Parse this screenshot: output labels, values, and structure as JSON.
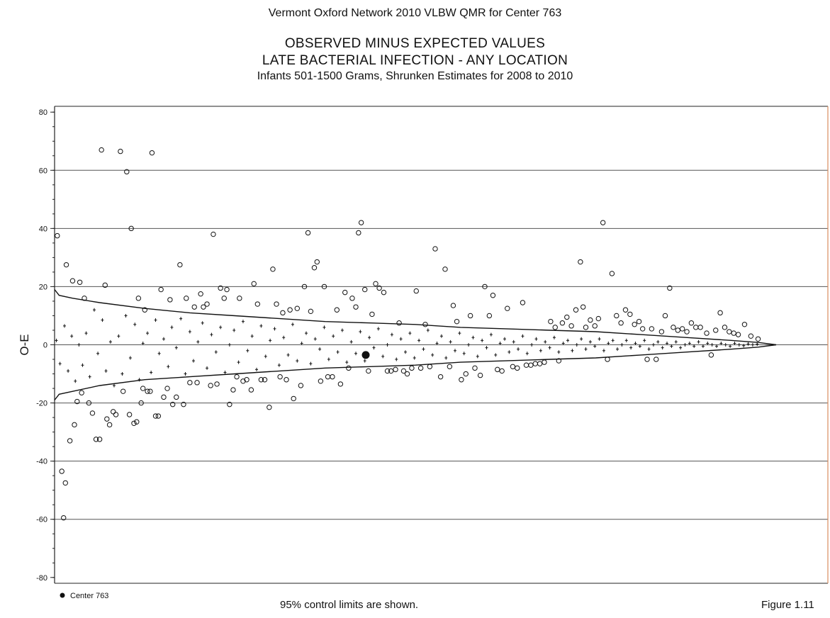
{
  "header": {
    "line1": "Vermont Oxford Network 2010 VLBW QMR for Center 763",
    "line2": "OBSERVED MINUS EXPECTED VALUES",
    "line3": "LATE BACTERIAL INFECTION - ANY LOCATION",
    "line4": "Infants 501-1500 Grams, Shrunken Estimates for 2008 to 2010"
  },
  "footer": {
    "note": "95% control limits are shown.",
    "figure": "Figure 1.11"
  },
  "colors": {
    "axis": "#222222",
    "gridline": "#555555",
    "border_right": "#d98c5f",
    "marker": "#111111"
  },
  "chart_data": {
    "type": "scatter",
    "ylabel": "O-E",
    "xlabel": "",
    "ylim": [
      -82,
      82
    ],
    "xlim": [
      0,
      100
    ],
    "yticks": [
      80,
      60,
      40,
      20,
      0,
      -20,
      -40,
      -60,
      -80
    ],
    "grid": true,
    "legend": {
      "position": "bottom-left",
      "entries": [
        "Center 763"
      ]
    },
    "x_axis_ticks_shown": false,
    "highlight": {
      "name": "Center 763",
      "x": 34.5,
      "y": -3.5
    },
    "control_limits": {
      "upper": [
        [
          0,
          19
        ],
        [
          0.5,
          17
        ],
        [
          2,
          16
        ],
        [
          5,
          14.5
        ],
        [
          10,
          12.5
        ],
        [
          15,
          11
        ],
        [
          20,
          10
        ],
        [
          25,
          9
        ],
        [
          30,
          8
        ],
        [
          35,
          7.5
        ],
        [
          40,
          7
        ],
        [
          45,
          6
        ],
        [
          50,
          5.5
        ],
        [
          55,
          5
        ],
        [
          60,
          4.5
        ],
        [
          65,
          3.5
        ],
        [
          70,
          2.5
        ],
        [
          75,
          1.5
        ],
        [
          78,
          0.8
        ],
        [
          80,
          0
        ]
      ],
      "lower": [
        [
          0,
          -19
        ],
        [
          0.5,
          -17
        ],
        [
          2,
          -16
        ],
        [
          5,
          -14
        ],
        [
          10,
          -12
        ],
        [
          15,
          -11
        ],
        [
          20,
          -10
        ],
        [
          25,
          -9
        ],
        [
          30,
          -8
        ],
        [
          35,
          -7.5
        ],
        [
          40,
          -7
        ],
        [
          45,
          -6
        ],
        [
          50,
          -5.5
        ],
        [
          55,
          -5
        ],
        [
          60,
          -4.5
        ],
        [
          65,
          -3.5
        ],
        [
          70,
          -2.5
        ],
        [
          75,
          -1.5
        ],
        [
          78,
          -0.8
        ],
        [
          80,
          0
        ]
      ]
    },
    "outlier_points": [
      [
        0.3,
        37.5
      ],
      [
        0.8,
        -43.5
      ],
      [
        1.2,
        -47.5
      ],
      [
        1.0,
        -59.5
      ],
      [
        1.3,
        27.5
      ],
      [
        1.7,
        -33
      ],
      [
        2.0,
        22
      ],
      [
        2.2,
        -27.5
      ],
      [
        2.5,
        -19.5
      ],
      [
        2.8,
        21.5
      ],
      [
        3.0,
        -16.5
      ],
      [
        3.3,
        16
      ],
      [
        3.8,
        -20
      ],
      [
        4.2,
        -23.5
      ],
      [
        4.6,
        -32.5
      ],
      [
        5.0,
        -32.5
      ],
      [
        5.2,
        67
      ],
      [
        5.6,
        20.5
      ],
      [
        5.8,
        -25.5
      ],
      [
        6.1,
        -27.5
      ],
      [
        6.5,
        -23
      ],
      [
        6.8,
        -24
      ],
      [
        7.3,
        66.5
      ],
      [
        7.6,
        -16
      ],
      [
        8.0,
        59.5
      ],
      [
        8.3,
        -24
      ],
      [
        8.5,
        40
      ],
      [
        8.8,
        -27
      ],
      [
        9.1,
        -26.5
      ],
      [
        9.3,
        16
      ],
      [
        9.6,
        -20
      ],
      [
        9.8,
        -15
      ],
      [
        10.0,
        12
      ],
      [
        10.3,
        -16
      ],
      [
        10.6,
        -16
      ],
      [
        10.8,
        66
      ],
      [
        11.2,
        -24.5
      ],
      [
        11.5,
        -24.5
      ],
      [
        11.8,
        19
      ],
      [
        12.1,
        -18
      ],
      [
        12.5,
        -15
      ],
      [
        12.8,
        15.5
      ],
      [
        13.1,
        -20.5
      ],
      [
        13.5,
        -18
      ],
      [
        13.9,
        27.5
      ],
      [
        14.3,
        -20.5
      ],
      [
        14.6,
        16
      ],
      [
        15.0,
        -13
      ],
      [
        15.5,
        13
      ],
      [
        15.8,
        -13
      ],
      [
        16.2,
        17.5
      ],
      [
        16.5,
        13
      ],
      [
        16.9,
        14
      ],
      [
        17.3,
        -14
      ],
      [
        17.6,
        38
      ],
      [
        18.0,
        -13.5
      ],
      [
        18.4,
        19.5
      ],
      [
        18.8,
        16
      ],
      [
        19.1,
        19
      ],
      [
        19.4,
        -20.5
      ],
      [
        19.8,
        -15.5
      ],
      [
        20.2,
        -11
      ],
      [
        20.5,
        16
      ],
      [
        20.9,
        -12.5
      ],
      [
        21.3,
        -12
      ],
      [
        21.8,
        -15.5
      ],
      [
        22.1,
        21
      ],
      [
        22.5,
        14
      ],
      [
        22.9,
        -12
      ],
      [
        23.3,
        -12
      ],
      [
        23.8,
        -21.5
      ],
      [
        24.2,
        26
      ],
      [
        24.6,
        14
      ],
      [
        25.0,
        -11
      ],
      [
        25.3,
        11
      ],
      [
        25.7,
        -12
      ],
      [
        26.1,
        12
      ],
      [
        26.5,
        -18.5
      ],
      [
        26.9,
        12.5
      ],
      [
        27.3,
        -14
      ],
      [
        27.7,
        20
      ],
      [
        28.1,
        38.5
      ],
      [
        28.4,
        11.5
      ],
      [
        28.8,
        26.5
      ],
      [
        29.1,
        28.5
      ],
      [
        29.5,
        -12.5
      ],
      [
        29.9,
        20
      ],
      [
        30.3,
        -11
      ],
      [
        30.8,
        -11
      ],
      [
        31.3,
        12
      ],
      [
        31.7,
        -13.5
      ],
      [
        32.2,
        18
      ],
      [
        32.6,
        -8
      ],
      [
        33.0,
        16
      ],
      [
        33.4,
        13
      ],
      [
        33.7,
        38.5
      ],
      [
        34.0,
        42
      ],
      [
        34.4,
        19
      ],
      [
        34.8,
        -9
      ],
      [
        35.2,
        10.5
      ],
      [
        35.6,
        21
      ],
      [
        36.0,
        19.5
      ],
      [
        36.5,
        18
      ],
      [
        36.9,
        -9
      ],
      [
        37.3,
        -9
      ],
      [
        37.8,
        -8.5
      ],
      [
        38.2,
        7.5
      ],
      [
        38.7,
        -9
      ],
      [
        39.1,
        -10
      ],
      [
        39.6,
        -8
      ],
      [
        40.1,
        18.5
      ],
      [
        40.6,
        -8
      ],
      [
        41.1,
        7
      ],
      [
        41.6,
        -7.5
      ],
      [
        42.2,
        33
      ],
      [
        42.8,
        -11
      ],
      [
        43.3,
        26
      ],
      [
        43.8,
        -7.5
      ],
      [
        44.2,
        13.5
      ],
      [
        44.6,
        8
      ],
      [
        45.1,
        -12
      ],
      [
        45.6,
        -10
      ],
      [
        46.1,
        10
      ],
      [
        46.6,
        -8
      ],
      [
        47.2,
        -10.5
      ],
      [
        47.7,
        20
      ],
      [
        48.2,
        10
      ],
      [
        48.6,
        17
      ],
      [
        49.1,
        -8.5
      ],
      [
        49.6,
        -9
      ],
      [
        50.2,
        12.5
      ],
      [
        50.8,
        -7.5
      ],
      [
        51.3,
        -8
      ],
      [
        51.9,
        14.5
      ],
      [
        52.3,
        -7
      ],
      [
        52.8,
        -7
      ],
      [
        53.3,
        -6.5
      ],
      [
        53.8,
        -6.5
      ],
      [
        54.3,
        -6
      ],
      [
        55.0,
        8
      ],
      [
        55.5,
        6
      ],
      [
        55.9,
        -5.5
      ],
      [
        56.3,
        7.5
      ],
      [
        56.8,
        9.5
      ],
      [
        57.3,
        6.5
      ],
      [
        57.8,
        12
      ],
      [
        58.3,
        28.5
      ],
      [
        58.6,
        13
      ],
      [
        58.9,
        6
      ],
      [
        59.4,
        8.5
      ],
      [
        59.9,
        6.5
      ],
      [
        60.3,
        9
      ],
      [
        60.8,
        42
      ],
      [
        61.3,
        -5
      ],
      [
        61.8,
        24.5
      ],
      [
        62.3,
        10
      ],
      [
        62.8,
        7.5
      ],
      [
        63.3,
        12
      ],
      [
        63.8,
        10.5
      ],
      [
        64.3,
        7
      ],
      [
        64.8,
        8
      ],
      [
        65.2,
        5.5
      ],
      [
        65.7,
        -5
      ],
      [
        66.2,
        5.5
      ],
      [
        66.7,
        -5
      ],
      [
        67.3,
        4.5
      ],
      [
        67.7,
        10
      ],
      [
        68.2,
        19.5
      ],
      [
        68.6,
        6
      ],
      [
        69.1,
        5
      ],
      [
        69.6,
        5.5
      ],
      [
        70.1,
        4.5
      ],
      [
        70.6,
        7.5
      ],
      [
        71.1,
        6
      ],
      [
        71.6,
        6
      ],
      [
        72.3,
        4
      ],
      [
        72.8,
        -3.5
      ],
      [
        73.3,
        5
      ],
      [
        73.8,
        11
      ],
      [
        74.3,
        6
      ],
      [
        74.8,
        4.5
      ],
      [
        75.3,
        4
      ],
      [
        75.8,
        3.5
      ],
      [
        76.5,
        7
      ],
      [
        77.2,
        3
      ],
      [
        78.0,
        2
      ]
    ],
    "inner_points": [
      [
        0.2,
        1.5
      ],
      [
        0.6,
        -6.5
      ],
      [
        1.1,
        6.5
      ],
      [
        1.5,
        -9
      ],
      [
        1.9,
        3
      ],
      [
        2.3,
        -12.5
      ],
      [
        2.7,
        0
      ],
      [
        3.1,
        -7
      ],
      [
        3.5,
        4
      ],
      [
        3.9,
        -11
      ],
      [
        4.4,
        12
      ],
      [
        4.8,
        -3
      ],
      [
        5.3,
        8.5
      ],
      [
        5.7,
        -9
      ],
      [
        6.2,
        1
      ],
      [
        6.6,
        -14
      ],
      [
        7.1,
        3
      ],
      [
        7.5,
        -10
      ],
      [
        7.9,
        10
      ],
      [
        8.4,
        -4.5
      ],
      [
        8.9,
        7
      ],
      [
        9.4,
        -12
      ],
      [
        9.8,
        0.5
      ],
      [
        10.3,
        4
      ],
      [
        10.7,
        -9.5
      ],
      [
        11.2,
        8.5
      ],
      [
        11.6,
        -3
      ],
      [
        12.1,
        2
      ],
      [
        12.6,
        -7.5
      ],
      [
        13.0,
        6
      ],
      [
        13.5,
        -1
      ],
      [
        14.0,
        9
      ],
      [
        14.5,
        -10
      ],
      [
        15.0,
        4.5
      ],
      [
        15.4,
        -5.5
      ],
      [
        15.9,
        1
      ],
      [
        16.4,
        7.5
      ],
      [
        16.9,
        -8
      ],
      [
        17.4,
        3.5
      ],
      [
        17.9,
        -2.5
      ],
      [
        18.4,
        6
      ],
      [
        18.9,
        -9.5
      ],
      [
        19.4,
        0
      ],
      [
        19.9,
        5
      ],
      [
        20.4,
        -6
      ],
      [
        20.9,
        8
      ],
      [
        21.4,
        -2
      ],
      [
        21.9,
        3
      ],
      [
        22.4,
        -8.5
      ],
      [
        22.9,
        6.5
      ],
      [
        23.4,
        -4
      ],
      [
        23.9,
        1.5
      ],
      [
        24.4,
        5.5
      ],
      [
        24.9,
        -7
      ],
      [
        25.4,
        2.5
      ],
      [
        25.9,
        -3.5
      ],
      [
        26.4,
        7
      ],
      [
        26.9,
        -5.5
      ],
      [
        27.4,
        0.5
      ],
      [
        27.9,
        4
      ],
      [
        28.4,
        -6.5
      ],
      [
        28.9,
        2
      ],
      [
        29.4,
        -1.5
      ],
      [
        29.9,
        6
      ],
      [
        30.4,
        -5
      ],
      [
        30.9,
        3
      ],
      [
        31.4,
        -2.5
      ],
      [
        31.9,
        5
      ],
      [
        32.4,
        -6
      ],
      [
        32.9,
        1
      ],
      [
        33.4,
        -3
      ],
      [
        33.9,
        4.5
      ],
      [
        34.4,
        -5.5
      ],
      [
        34.9,
        2.5
      ],
      [
        35.4,
        -1
      ],
      [
        35.9,
        5.5
      ],
      [
        36.4,
        -4
      ],
      [
        36.9,
        0
      ],
      [
        37.4,
        3.5
      ],
      [
        37.9,
        -5
      ],
      [
        38.4,
        2
      ],
      [
        38.9,
        -2.5
      ],
      [
        39.4,
        4
      ],
      [
        39.9,
        -4.5
      ],
      [
        40.4,
        1.5
      ],
      [
        40.9,
        -1.5
      ],
      [
        41.4,
        5
      ],
      [
        41.9,
        -3.5
      ],
      [
        42.4,
        0.5
      ],
      [
        42.9,
        3
      ],
      [
        43.4,
        -4.5
      ],
      [
        43.9,
        1
      ],
      [
        44.4,
        -2
      ],
      [
        44.9,
        4
      ],
      [
        45.4,
        -3
      ],
      [
        45.9,
        0
      ],
      [
        46.4,
        2.5
      ],
      [
        46.9,
        -4
      ],
      [
        47.4,
        1.5
      ],
      [
        47.9,
        -1
      ],
      [
        48.4,
        3.5
      ],
      [
        48.9,
        -3.5
      ],
      [
        49.4,
        0.5
      ],
      [
        49.9,
        2
      ],
      [
        50.4,
        -2.5
      ],
      [
        50.9,
        1
      ],
      [
        51.4,
        -1.5
      ],
      [
        51.9,
        3
      ],
      [
        52.4,
        -3
      ],
      [
        52.9,
        0
      ],
      [
        53.4,
        2
      ],
      [
        53.9,
        -2
      ],
      [
        54.4,
        1
      ],
      [
        54.9,
        -1
      ],
      [
        55.4,
        2.5
      ],
      [
        55.9,
        -2.5
      ],
      [
        56.4,
        0.5
      ],
      [
        56.9,
        1.5
      ],
      [
        57.4,
        -2
      ],
      [
        57.9,
        0
      ],
      [
        58.4,
        2
      ],
      [
        58.9,
        -1.5
      ],
      [
        59.4,
        1
      ],
      [
        59.9,
        -0.5
      ],
      [
        60.4,
        2
      ],
      [
        60.9,
        -2
      ],
      [
        61.4,
        0.5
      ],
      [
        61.9,
        1.5
      ],
      [
        62.4,
        -1.5
      ],
      [
        62.9,
        0
      ],
      [
        63.4,
        1.5
      ],
      [
        63.9,
        -1
      ],
      [
        64.4,
        0.5
      ],
      [
        64.9,
        -0.5
      ],
      [
        65.4,
        1.5
      ],
      [
        65.9,
        -1.5
      ],
      [
        66.4,
        0
      ],
      [
        66.9,
        1
      ],
      [
        67.4,
        -1
      ],
      [
        67.9,
        0.5
      ],
      [
        68.4,
        -0.5
      ],
      [
        68.9,
        1
      ],
      [
        69.4,
        -1
      ],
      [
        69.9,
        0
      ],
      [
        70.4,
        0.5
      ],
      [
        70.9,
        -0.5
      ],
      [
        71.4,
        1
      ],
      [
        71.9,
        -0.5
      ],
      [
        72.4,
        0.5
      ],
      [
        72.9,
        0
      ],
      [
        73.4,
        -0.5
      ],
      [
        73.9,
        0.5
      ],
      [
        74.4,
        0
      ],
      [
        74.9,
        -0.5
      ],
      [
        75.4,
        0.5
      ],
      [
        75.9,
        0
      ],
      [
        76.4,
        -0.3
      ],
      [
        76.9,
        0.3
      ],
      [
        77.4,
        0
      ],
      [
        77.9,
        0.2
      ]
    ]
  }
}
